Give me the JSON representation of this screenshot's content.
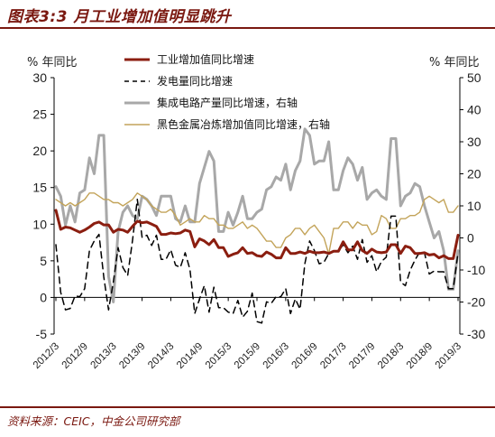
{
  "header": {
    "title": "图表3:3 月工业增加值明显跳升"
  },
  "footer": {
    "source": "资料来源：CEIC，中金公司研究部"
  },
  "chart_data": {
    "type": "line",
    "title": "图表3:3 月工业增加值明显跳升",
    "left_unit": "% 年同比",
    "right_unit": "% 年同比",
    "ylim_left": [
      -5,
      30
    ],
    "ylim_right": [
      -30,
      50
    ],
    "yticks_left": [
      -5,
      0,
      5,
      10,
      15,
      20,
      25,
      30
    ],
    "yticks_right": [
      -30,
      -20,
      -10,
      0,
      10,
      20,
      30,
      40,
      50
    ],
    "x_tick_labels": [
      "2012/3",
      "2012/9",
      "2013/3",
      "2013/9",
      "2014/3",
      "2014/9",
      "2015/3",
      "2015/9",
      "2016/3",
      "2016/9",
      "2017/3",
      "2017/9",
      "2018/3",
      "2018/9",
      "2019/3"
    ],
    "legend_position": "top-center",
    "series": [
      {
        "name": "工业增加值同比增速",
        "axis": "left",
        "color": "#8b1e10",
        "style": "solid-thick",
        "x": [
          "2012/3",
          "2012/4",
          "2012/5",
          "2012/6",
          "2012/7",
          "2012/8",
          "2012/9",
          "2012/10",
          "2012/11",
          "2012/12",
          "2013/1",
          "2013/2",
          "2013/3",
          "2013/4",
          "2013/5",
          "2013/6",
          "2013/7",
          "2013/8",
          "2013/9",
          "2013/10",
          "2013/11",
          "2013/12",
          "2014/1",
          "2014/2",
          "2014/3",
          "2014/4",
          "2014/5",
          "2014/6",
          "2014/7",
          "2014/8",
          "2014/9",
          "2014/10",
          "2014/11",
          "2014/12",
          "2015/1",
          "2015/2",
          "2015/3",
          "2015/4",
          "2015/5",
          "2015/6",
          "2015/7",
          "2015/8",
          "2015/9",
          "2015/10",
          "2015/11",
          "2015/12",
          "2016/1",
          "2016/2",
          "2016/3",
          "2016/4",
          "2016/5",
          "2016/6",
          "2016/7",
          "2016/8",
          "2016/9",
          "2016/10",
          "2016/11",
          "2016/12",
          "2017/1",
          "2017/2",
          "2017/3",
          "2017/4",
          "2017/5",
          "2017/6",
          "2017/7",
          "2017/8",
          "2017/9",
          "2017/10",
          "2017/11",
          "2017/12",
          "2018/1",
          "2018/2",
          "2018/3",
          "2018/4",
          "2018/5",
          "2018/6",
          "2018/7",
          "2018/8",
          "2018/9",
          "2018/10",
          "2018/11",
          "2018/12",
          "2019/1",
          "2019/2",
          "2019/3"
        ],
        "values": [
          11.9,
          9.3,
          9.6,
          9.5,
          9.2,
          8.9,
          9.2,
          9.6,
          10.1,
          10.3,
          9.9,
          9.9,
          8.9,
          9.3,
          9.2,
          8.9,
          9.7,
          10.4,
          10.2,
          10.3,
          10.0,
          9.7,
          8.6,
          8.6,
          8.8,
          8.7,
          8.8,
          9.2,
          9.0,
          6.9,
          8.0,
          7.7,
          7.2,
          7.9,
          6.8,
          6.8,
          5.6,
          5.9,
          6.1,
          6.8,
          6.0,
          6.1,
          5.7,
          5.6,
          6.2,
          5.9,
          5.4,
          5.4,
          6.8,
          6.0,
          6.0,
          6.2,
          6.0,
          6.3,
          6.1,
          6.1,
          6.2,
          6.0,
          6.3,
          6.3,
          7.6,
          6.5,
          6.5,
          7.6,
          6.4,
          6.0,
          6.6,
          6.2,
          6.1,
          6.2,
          7.2,
          7.2,
          6.0,
          7.0,
          6.8,
          6.0,
          6.0,
          6.1,
          5.8,
          5.9,
          5.4,
          5.7,
          5.3,
          5.3,
          8.5
        ]
      },
      {
        "name": "发电量同比增速",
        "axis": "left",
        "color": "#000000",
        "style": "dashed",
        "x": [
          "2012/3",
          "2012/4",
          "2012/5",
          "2012/6",
          "2012/7",
          "2012/8",
          "2012/9",
          "2012/10",
          "2012/11",
          "2012/12",
          "2013/1",
          "2013/2",
          "2013/3",
          "2013/4",
          "2013/5",
          "2013/6",
          "2013/7",
          "2013/8",
          "2013/9",
          "2013/10",
          "2013/11",
          "2013/12",
          "2014/1",
          "2014/2",
          "2014/3",
          "2014/4",
          "2014/5",
          "2014/6",
          "2014/7",
          "2014/8",
          "2014/9",
          "2014/10",
          "2014/11",
          "2014/12",
          "2015/1",
          "2015/2",
          "2015/3",
          "2015/4",
          "2015/5",
          "2015/6",
          "2015/7",
          "2015/8",
          "2015/9",
          "2015/10",
          "2015/11",
          "2015/12",
          "2016/1",
          "2016/2",
          "2016/3",
          "2016/4",
          "2016/5",
          "2016/6",
          "2016/7",
          "2016/8",
          "2016/9",
          "2016/10",
          "2016/11",
          "2016/12",
          "2017/1",
          "2017/2",
          "2017/3",
          "2017/4",
          "2017/5",
          "2017/6",
          "2017/7",
          "2017/8",
          "2017/9",
          "2017/10",
          "2017/11",
          "2017/12",
          "2018/1",
          "2018/2",
          "2018/3",
          "2018/4",
          "2018/5",
          "2018/6",
          "2018/7",
          "2018/8",
          "2018/9",
          "2018/10",
          "2018/11",
          "2018/12",
          "2019/1",
          "2019/2",
          "2019/3"
        ],
        "values": [
          7.2,
          0.7,
          -1.7,
          -1.5,
          0.2,
          0.1,
          1.2,
          6.4,
          7.7,
          8.6,
          2.8,
          -1.7,
          2.1,
          6.8,
          4.1,
          3.0,
          7.8,
          13.4,
          8.2,
          8.5,
          7.1,
          8.5,
          5.2,
          5.2,
          6.5,
          4.4,
          4.1,
          6.1,
          3.8,
          -2.2,
          -0.2,
          1.6,
          -2.0,
          1.4,
          -1.4,
          -1.4,
          -2.0,
          -2.2,
          -0.4,
          -2.7,
          -1.9,
          0.6,
          -3.3,
          -3.5,
          -0.6,
          -0.8,
          0.1,
          0.1,
          1.2,
          -2.2,
          -0.2,
          -1.6,
          4.6,
          7.7,
          6.4,
          4.6,
          4.8,
          6.0,
          6.3,
          6.3,
          7.2,
          6.1,
          7.0,
          5.2,
          7.9,
          4.8,
          5.7,
          3.5,
          4.9,
          5.5,
          11.1,
          11.1,
          2.1,
          1.6,
          3.7,
          5.1,
          6.2,
          6.1,
          3.2,
          3.6,
          3.5,
          3.5,
          1.2,
          1.2,
          6.1
        ]
      },
      {
        "name": "集成电路产量同比增速，右轴",
        "axis": "right",
        "color": "#a8a8a8",
        "style": "solid-thick",
        "x": [
          "2012/3",
          "2012/4",
          "2012/5",
          "2012/6",
          "2012/7",
          "2012/8",
          "2012/9",
          "2012/10",
          "2012/11",
          "2012/12",
          "2013/1",
          "2013/2",
          "2013/3",
          "2013/4",
          "2013/5",
          "2013/6",
          "2013/7",
          "2013/8",
          "2013/9",
          "2013/10",
          "2013/11",
          "2013/12",
          "2014/1",
          "2014/2",
          "2014/3",
          "2014/4",
          "2014/5",
          "2014/6",
          "2014/7",
          "2014/8",
          "2014/9",
          "2014/10",
          "2014/11",
          "2014/12",
          "2015/1",
          "2015/2",
          "2015/3",
          "2015/4",
          "2015/5",
          "2015/6",
          "2015/7",
          "2015/8",
          "2015/9",
          "2015/10",
          "2015/11",
          "2015/12",
          "2016/1",
          "2016/2",
          "2016/3",
          "2016/4",
          "2016/5",
          "2016/6",
          "2016/7",
          "2016/8",
          "2016/9",
          "2016/10",
          "2016/11",
          "2016/12",
          "2017/1",
          "2017/2",
          "2017/3",
          "2017/4",
          "2017/5",
          "2017/6",
          "2017/7",
          "2017/8",
          "2017/9",
          "2017/10",
          "2017/11",
          "2017/12",
          "2018/1",
          "2018/2",
          "2018/3",
          "2018/4",
          "2018/5",
          "2018/6",
          "2018/7",
          "2018/8",
          "2018/9",
          "2018/10",
          "2018/11",
          "2018/12",
          "2019/1",
          "2019/2",
          "2019/3"
        ],
        "values": [
          16,
          13,
          4,
          10,
          5,
          14,
          15,
          25,
          20,
          32,
          32,
          -12,
          -20,
          2,
          8,
          10,
          7,
          6,
          13,
          12,
          10,
          7,
          13,
          13,
          13,
          6,
          5,
          10,
          5,
          5,
          17,
          22,
          27,
          24,
          2,
          2,
          8,
          4,
          8,
          13,
          6,
          6,
          8,
          9,
          15,
          16,
          19,
          18,
          23,
          15,
          21,
          24,
          34,
          32,
          23,
          24,
          24,
          30,
          15,
          15,
          21,
          25,
          23,
          18,
          22,
          12,
          14,
          15,
          13,
          12,
          31,
          31,
          10,
          13,
          14,
          17,
          16,
          10,
          5,
          0,
          2,
          -4,
          -16,
          -16,
          -4
        ]
      },
      {
        "name": "黑色金属冶炼增加值同比增速，右轴",
        "axis": "right",
        "color": "#c3a45a",
        "style": "solid-thin",
        "x": [
          "2012/3",
          "2012/4",
          "2012/5",
          "2012/6",
          "2012/7",
          "2012/8",
          "2012/9",
          "2012/10",
          "2012/11",
          "2012/12",
          "2013/1",
          "2013/2",
          "2013/3",
          "2013/4",
          "2013/5",
          "2013/6",
          "2013/7",
          "2013/8",
          "2013/9",
          "2013/10",
          "2013/11",
          "2013/12",
          "2014/1",
          "2014/2",
          "2014/3",
          "2014/4",
          "2014/5",
          "2014/6",
          "2014/7",
          "2014/8",
          "2014/9",
          "2014/10",
          "2014/11",
          "2014/12",
          "2015/1",
          "2015/2",
          "2015/3",
          "2015/4",
          "2015/5",
          "2015/6",
          "2015/7",
          "2015/8",
          "2015/9",
          "2015/10",
          "2015/11",
          "2015/12",
          "2016/1",
          "2016/2",
          "2016/3",
          "2016/4",
          "2016/5",
          "2016/6",
          "2016/7",
          "2016/8",
          "2016/9",
          "2016/10",
          "2016/11",
          "2016/12",
          "2017/1",
          "2017/2",
          "2017/3",
          "2017/4",
          "2017/5",
          "2017/6",
          "2017/7",
          "2017/8",
          "2017/9",
          "2017/10",
          "2017/11",
          "2017/12",
          "2018/1",
          "2018/2",
          "2018/3",
          "2018/4",
          "2018/5",
          "2018/6",
          "2018/7",
          "2018/8",
          "2018/9",
          "2018/10",
          "2018/11",
          "2018/12",
          "2019/1",
          "2019/2",
          "2019/3"
        ],
        "values": [
          12,
          11,
          10,
          11,
          10,
          11,
          12,
          14,
          14,
          13,
          12,
          12,
          11,
          11,
          10,
          11,
          12,
          14,
          13,
          12,
          10,
          9,
          8,
          8,
          9,
          7,
          4,
          5,
          6,
          5,
          5,
          7,
          6,
          6,
          4,
          4,
          3,
          3,
          4,
          5,
          3,
          4,
          3,
          1,
          -1,
          -1,
          -3,
          -3,
          0,
          1,
          3,
          3,
          1,
          3,
          4,
          2,
          0,
          -5,
          3,
          3,
          5,
          5,
          3,
          5,
          4,
          4,
          1,
          2,
          7,
          6,
          3,
          3,
          6,
          6,
          7,
          7,
          8,
          12,
          13,
          12,
          11,
          12,
          8,
          8,
          10
        ]
      }
    ]
  }
}
